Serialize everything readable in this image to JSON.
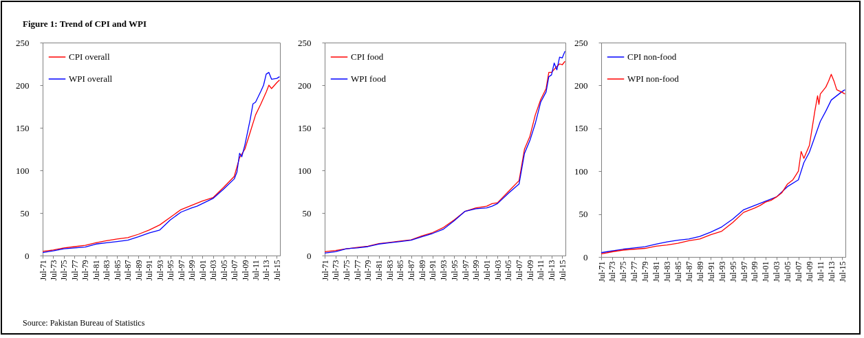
{
  "chart_data": [
    {
      "type": "line",
      "title": "Figure 1: Trend of CPI and WPI",
      "annotations": [
        "Source: Pakistan Bureau of Statistics"
      ],
      "legend": "top left",
      "xlim": [
        "1971-07",
        "2016-02"
      ],
      "ylim": [
        0,
        250
      ],
      "yticks": [
        0,
        50,
        100,
        150,
        200,
        250
      ],
      "xticks": [
        {
          "value": "1971-07",
          "label": "Jul-71"
        },
        {
          "value": "1973-07",
          "label": "Jul-73"
        },
        {
          "value": "1975-07",
          "label": "Jul-75"
        },
        {
          "value": "1977-07",
          "label": "Jul-77"
        },
        {
          "value": "1979-07",
          "label": "Jul-79"
        },
        {
          "value": "1981-07",
          "label": "Jul-81"
        },
        {
          "value": "1983-07",
          "label": "Jul-83"
        },
        {
          "value": "1985-07",
          "label": "Jul-85"
        },
        {
          "value": "1987-07",
          "label": "Jul-87"
        },
        {
          "value": "1989-07",
          "label": "Jul-89"
        },
        {
          "value": "1991-07",
          "label": "Jul-91"
        },
        {
          "value": "1993-07",
          "label": "Jul-93"
        },
        {
          "value": "1995-07",
          "label": "Jul-95"
        },
        {
          "value": "1997-07",
          "label": "Jul-97"
        },
        {
          "value": "1999-07",
          "label": "Jul-99"
        },
        {
          "value": "2001-07",
          "label": "Jul-01"
        },
        {
          "value": "2003-07",
          "label": "Jul-03"
        },
        {
          "value": "2005-07",
          "label": "Jul-05"
        },
        {
          "value": "2007-07",
          "label": "Jul-07"
        },
        {
          "value": "2009-07",
          "label": "Jul-09"
        },
        {
          "value": "2011-07",
          "label": "Jul-11"
        },
        {
          "value": "2013-07",
          "label": "Jul-13"
        },
        {
          "value": "2015-07",
          "label": "Jul-15"
        }
      ],
      "series": [
        {
          "name": "CPI overall",
          "color": "#ff0000",
          "x": [
            "1971-07",
            "1973-07",
            "1975-07",
            "1977-07",
            "1979-07",
            "1981-07",
            "1983-07",
            "1985-07",
            "1987-07",
            "1989-07",
            "1991-07",
            "1993-07",
            "1995-07",
            "1997-07",
            "1999-07",
            "2001-07",
            "2003-07",
            "2005-07",
            "2007-07",
            "2008-07",
            "2009-07",
            "2010-07",
            "2011-07",
            "2012-07",
            "2013-07",
            "2014-01",
            "2014-07",
            "2015-07",
            "2016-01"
          ],
          "values": [
            5,
            6.5,
            9,
            10.5,
            12,
            15,
            17.5,
            19.5,
            21,
            25,
            30,
            36,
            45,
            54,
            59,
            64,
            68,
            80,
            93,
            115,
            125,
            145,
            165,
            178,
            192,
            200,
            196,
            203,
            206
          ]
        },
        {
          "name": "WPI overall",
          "color": "#0000ff",
          "x": [
            "1971-07",
            "1973-07",
            "1975-07",
            "1977-07",
            "1979-07",
            "1981-07",
            "1983-07",
            "1985-07",
            "1987-07",
            "1989-07",
            "1991-07",
            "1993-07",
            "1995-07",
            "1997-07",
            "1999-07",
            "2000-07",
            "2001-07",
            "2003-07",
            "2005-07",
            "2007-07",
            "2008-01",
            "2008-07",
            "2008-12",
            "2009-07",
            "2010-07",
            "2011-01",
            "2011-07",
            "2012-07",
            "2013-01",
            "2013-07",
            "2014-01",
            "2014-07",
            "2015-07",
            "2016-01"
          ],
          "values": [
            3.5,
            5.5,
            8,
            9,
            10,
            13.5,
            15,
            16.5,
            18,
            22,
            26.5,
            30,
            42,
            51,
            56,
            58,
            61,
            67,
            78,
            90,
            98,
            120,
            116,
            130,
            160,
            178,
            180,
            193,
            200,
            213,
            215,
            207,
            208,
            210
          ]
        }
      ]
    },
    {
      "type": "line",
      "legend": "top left",
      "xlim": [
        "1971-07",
        "2016-02"
      ],
      "ylim": [
        0,
        250
      ],
      "yticks": [
        0,
        50,
        100,
        150,
        200,
        250
      ],
      "xticks": [
        {
          "value": "1971-07",
          "label": "Jul-71"
        },
        {
          "value": "1973-07",
          "label": "Jul-73"
        },
        {
          "value": "1975-07",
          "label": "Jul-75"
        },
        {
          "value": "1977-07",
          "label": "Jul-77"
        },
        {
          "value": "1979-07",
          "label": "Jul-79"
        },
        {
          "value": "1981-07",
          "label": "Jul-81"
        },
        {
          "value": "1983-07",
          "label": "Jul-83"
        },
        {
          "value": "1985-07",
          "label": "Jul-85"
        },
        {
          "value": "1987-07",
          "label": "Jul-87"
        },
        {
          "value": "1989-07",
          "label": "Jul-89"
        },
        {
          "value": "1991-07",
          "label": "Jul-91"
        },
        {
          "value": "1993-07",
          "label": "Jul-93"
        },
        {
          "value": "1995-07",
          "label": "Jul-95"
        },
        {
          "value": "1997-07",
          "label": "Jul-97"
        },
        {
          "value": "1999-07",
          "label": "Jul-99"
        },
        {
          "value": "2001-07",
          "label": "Jul-01"
        },
        {
          "value": "2003-07",
          "label": "Jul-03"
        },
        {
          "value": "2005-07",
          "label": "Jul-05"
        },
        {
          "value": "2007-07",
          "label": "Jul-07"
        },
        {
          "value": "2009-07",
          "label": "Jul-09"
        },
        {
          "value": "2011-07",
          "label": "Jul-11"
        },
        {
          "value": "2013-07",
          "label": "Jul-13"
        },
        {
          "value": "2015-07",
          "label": "Jul-15"
        }
      ],
      "series": [
        {
          "name": "CPI food",
          "color": "#ff0000",
          "x": [
            "1971-07",
            "1973-07",
            "1975-07",
            "1977-07",
            "1979-07",
            "1981-07",
            "1983-07",
            "1985-07",
            "1987-07",
            "1989-07",
            "1991-07",
            "1993-07",
            "1995-07",
            "1997-07",
            "1999-07",
            "2001-07",
            "2002-07",
            "2003-07",
            "2005-07",
            "2007-07",
            "2008-07",
            "2009-07",
            "2010-07",
            "2011-07",
            "2012-07",
            "2013-01",
            "2013-07",
            "2014-07",
            "2015-01",
            "2015-07",
            "2016-01"
          ],
          "values": [
            4.5,
            6,
            8,
            9.5,
            11,
            14,
            15.5,
            17,
            18.5,
            23,
            27,
            33,
            42,
            52,
            56,
            58,
            61,
            62,
            75,
            88,
            125,
            140,
            165,
            183,
            196,
            215,
            215,
            222,
            225,
            224,
            228
          ]
        },
        {
          "name": "WPI food",
          "color": "#0000ff",
          "x": [
            "1971-07",
            "1973-07",
            "1975-07",
            "1977-07",
            "1979-07",
            "1981-07",
            "1983-07",
            "1985-07",
            "1987-07",
            "1989-07",
            "1991-07",
            "1993-07",
            "1995-07",
            "1997-07",
            "1999-07",
            "2001-07",
            "2002-07",
            "2003-07",
            "2005-07",
            "2007-07",
            "2008-07",
            "2009-07",
            "2010-07",
            "2011-07",
            "2012-07",
            "2013-01",
            "2013-07",
            "2014-01",
            "2014-07",
            "2015-01",
            "2015-07",
            "2016-01"
          ],
          "values": [
            3,
            4.5,
            8,
            9,
            10.5,
            13.5,
            15,
            16.5,
            18,
            22,
            26,
            31,
            41,
            52,
            55,
            56,
            58,
            61,
            73,
            84,
            120,
            135,
            155,
            180,
            192,
            210,
            212,
            226,
            218,
            233,
            232,
            240
          ]
        }
      ]
    },
    {
      "type": "line",
      "legend": "top left",
      "xlim": [
        "1971-07",
        "2016-02"
      ],
      "ylim": [
        0,
        250
      ],
      "yticks": [
        0,
        50,
        100,
        150,
        200,
        250
      ],
      "xticks": [
        {
          "value": "1971-07",
          "label": "Jul-71"
        },
        {
          "value": "1973-07",
          "label": "Jul-73"
        },
        {
          "value": "1975-07",
          "label": "Jul-75"
        },
        {
          "value": "1977-07",
          "label": "Jul-77"
        },
        {
          "value": "1979-07",
          "label": "Jul-79"
        },
        {
          "value": "1981-07",
          "label": "Jul-81"
        },
        {
          "value": "1983-07",
          "label": "Jul-83"
        },
        {
          "value": "1985-07",
          "label": "Jul-85"
        },
        {
          "value": "1987-07",
          "label": "Jul-87"
        },
        {
          "value": "1989-07",
          "label": "Jul-89"
        },
        {
          "value": "1991-07",
          "label": "Jul-91"
        },
        {
          "value": "1993-07",
          "label": "Jul-93"
        },
        {
          "value": "1995-07",
          "label": "Jul-95"
        },
        {
          "value": "1997-07",
          "label": "Jul-97"
        },
        {
          "value": "1999-07",
          "label": "Jul-99"
        },
        {
          "value": "2001-07",
          "label": "Jul-01"
        },
        {
          "value": "2003-07",
          "label": "Jul-03"
        },
        {
          "value": "2005-07",
          "label": "Jul-05"
        },
        {
          "value": "2007-07",
          "label": "Jul-07"
        },
        {
          "value": "2009-07",
          "label": "Jul-09"
        },
        {
          "value": "2011-07",
          "label": "Jul-11"
        },
        {
          "value": "2013-07",
          "label": "Jul-13"
        },
        {
          "value": "2015-07",
          "label": "Jul-15"
        }
      ],
      "series": [
        {
          "name": "CPI non-food",
          "color": "#0000ff",
          "x": [
            "1971-07",
            "1973-07",
            "1975-07",
            "1977-07",
            "1979-07",
            "1981-07",
            "1983-07",
            "1985-07",
            "1987-07",
            "1989-07",
            "1991-07",
            "1993-07",
            "1995-07",
            "1997-07",
            "1999-07",
            "2001-07",
            "2003-07",
            "2005-07",
            "2007-07",
            "2008-07",
            "2009-07",
            "2010-07",
            "2011-07",
            "2012-07",
            "2013-07",
            "2014-07",
            "2015-07",
            "2016-01"
          ],
          "values": [
            5,
            7,
            9,
            10.5,
            12,
            15,
            17.5,
            19.5,
            21,
            24,
            29,
            35,
            44,
            55,
            60,
            65,
            70,
            82,
            90,
            110,
            122,
            140,
            158,
            170,
            183,
            188,
            193,
            195
          ]
        },
        {
          "name": "WPI non-food",
          "color": "#ff0000",
          "x": [
            "1971-07",
            "1973-07",
            "1975-07",
            "1977-07",
            "1979-07",
            "1981-07",
            "1983-07",
            "1985-07",
            "1987-07",
            "1989-07",
            "1991-07",
            "1993-07",
            "1995-07",
            "1997-07",
            "1999-07",
            "2000-07",
            "2001-07",
            "2002-07",
            "2003-07",
            "2004-07",
            "2005-07",
            "2006-07",
            "2007-07",
            "2008-01",
            "2008-07",
            "2009-07",
            "2010-01",
            "2010-07",
            "2011-01",
            "2011-04",
            "2011-07",
            "2012-07",
            "2013-01",
            "2013-07",
            "2014-01",
            "2014-07",
            "2015-07",
            "2016-01"
          ],
          "values": [
            3.5,
            6,
            8,
            9,
            10,
            12.5,
            14,
            16,
            19,
            21,
            26,
            30,
            40,
            52,
            57,
            60,
            64,
            66,
            70,
            75,
            85,
            90,
            100,
            123,
            115,
            130,
            150,
            170,
            188,
            178,
            190,
            198,
            205,
            213,
            205,
            195,
            192,
            190
          ]
        }
      ]
    }
  ]
}
